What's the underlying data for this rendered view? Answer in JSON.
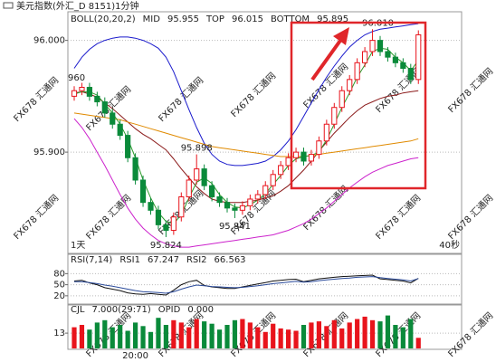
{
  "toolbar": {
    "title": "美元指数(外汇_D 8151)1分钟"
  },
  "watermark": "FX678 汇通网",
  "chart_data": [
    {
      "type": "candlestick",
      "indicator": "BOLL(20,20,2)",
      "ylim": [
        95.811,
        96.024
      ],
      "yticks": [
        {
          "value": 96.0,
          "label": "96.000"
        },
        {
          "value": 95.9,
          "label": "95.900"
        }
      ],
      "grid": true,
      "up_color": "#e8141c",
      "down_color": "#0a8a3a",
      "annotations": [
        "960"
      ],
      "corner_labels": [
        "1天",
        "40秒"
      ],
      "open": {
        "values": [
          95.95,
          95.955,
          95.958,
          95.95,
          95.945,
          95.935,
          95.925,
          95.915,
          95.895,
          95.875,
          95.855,
          95.848,
          95.835,
          95.83,
          95.842,
          95.86,
          95.875,
          95.885,
          95.87,
          95.86,
          95.855,
          95.85,
          95.848,
          95.852,
          95.858,
          95.862,
          95.87,
          95.88,
          95.888,
          95.895,
          95.9,
          95.892,
          95.898,
          95.91,
          95.925,
          95.94,
          95.955,
          95.965,
          95.98,
          95.99,
          96.0,
          95.99,
          95.985,
          95.98,
          95.975,
          95.965
        ]
      },
      "close": {
        "values": [
          95.955,
          95.958,
          95.95,
          95.945,
          95.935,
          95.925,
          95.915,
          95.895,
          95.875,
          95.855,
          95.848,
          95.835,
          95.83,
          95.842,
          95.86,
          95.875,
          95.885,
          95.87,
          95.86,
          95.855,
          95.85,
          95.848,
          95.852,
          95.858,
          95.862,
          95.87,
          95.88,
          95.888,
          95.895,
          95.9,
          95.892,
          95.898,
          95.91,
          95.925,
          95.94,
          95.955,
          95.965,
          95.98,
          95.99,
          96.0,
          95.99,
          95.985,
          95.98,
          95.975,
          95.965,
          96.005
        ]
      },
      "high": {
        "values": [
          95.959,
          95.962,
          95.962,
          95.954,
          95.949,
          95.939,
          95.929,
          95.919,
          95.899,
          95.879,
          95.859,
          95.852,
          95.839,
          95.846,
          95.864,
          95.879,
          95.898,
          95.889,
          95.874,
          95.864,
          95.859,
          95.854,
          95.856,
          95.862,
          95.866,
          95.874,
          95.884,
          95.892,
          95.899,
          95.904,
          95.904,
          95.902,
          95.914,
          95.929,
          95.944,
          95.959,
          95.969,
          95.984,
          95.994,
          96.01,
          96.004,
          95.994,
          95.989,
          95.984,
          95.979,
          96.009
        ],
        "value_labels": [
          null,
          null,
          null,
          null,
          null,
          null,
          null,
          null,
          null,
          null,
          null,
          null,
          null,
          null,
          null,
          null,
          "95.898",
          null,
          null,
          null,
          null,
          null,
          null,
          null,
          null,
          null,
          null,
          null,
          null,
          null,
          null,
          null,
          null,
          null,
          null,
          null,
          null,
          null,
          null,
          "96.010",
          null,
          null,
          null,
          null,
          null,
          null
        ]
      },
      "low": {
        "values": [
          95.946,
          95.951,
          95.946,
          95.941,
          95.931,
          95.921,
          95.911,
          95.891,
          95.871,
          95.851,
          95.844,
          95.831,
          95.824,
          95.826,
          95.838,
          95.856,
          95.871,
          95.866,
          95.856,
          95.851,
          95.846,
          95.841,
          95.844,
          95.848,
          95.854,
          95.858,
          95.866,
          95.876,
          95.884,
          95.891,
          95.888,
          95.888,
          95.894,
          95.906,
          95.921,
          95.936,
          95.951,
          95.961,
          95.976,
          95.986,
          95.986,
          95.981,
          95.976,
          95.971,
          95.961,
          95.961
        ],
        "value_labels": [
          null,
          null,
          null,
          null,
          null,
          null,
          null,
          null,
          null,
          null,
          null,
          null,
          "95.824",
          null,
          null,
          null,
          null,
          null,
          null,
          null,
          null,
          "95.841",
          null,
          null,
          null,
          null,
          null,
          null,
          null,
          null,
          null,
          null,
          null,
          null,
          null,
          null,
          null,
          null,
          null,
          null,
          null,
          null,
          null,
          null,
          null,
          null
        ]
      },
      "lines": [
        {
          "name": "MID",
          "color": "#8b1a1a",
          "legend_value": 95.955,
          "values": [
            95.953,
            95.954,
            95.952,
            95.949,
            95.944,
            95.939,
            95.933,
            95.927,
            95.921,
            95.916,
            95.912,
            95.907,
            95.902,
            95.894,
            95.885,
            95.877,
            95.869,
            95.863,
            95.858,
            95.856,
            95.855,
            95.855,
            95.855,
            95.856,
            95.857,
            95.859,
            95.861,
            95.865,
            95.87,
            95.877,
            95.884,
            95.892,
            95.901,
            95.909,
            95.917,
            95.924,
            95.931,
            95.937,
            95.942,
            95.945,
            95.948,
            95.95,
            95.951,
            95.953,
            95.954,
            95.955
          ]
        },
        {
          "name": "TOP",
          "color": "#1a1acc",
          "legend_value": 96.015,
          "values": [
            95.975,
            95.985,
            95.992,
            95.997,
            96.0,
            96.002,
            96.003,
            96.003,
            96.002,
            96.0,
            95.997,
            95.993,
            95.985,
            95.972,
            95.955,
            95.938,
            95.922,
            95.908,
            95.898,
            95.892,
            95.889,
            95.888,
            95.888,
            95.889,
            95.89,
            95.892,
            95.896,
            95.902,
            95.91,
            95.92,
            95.932,
            95.944,
            95.956,
            95.967,
            95.977,
            95.986,
            95.994,
            96.0,
            96.005,
            96.008,
            96.01,
            96.011,
            96.012,
            96.013,
            96.014,
            96.015
          ]
        },
        {
          "name": "BOTTOM",
          "color": "#cc22cc",
          "legend_value": 95.895,
          "values": [
            95.93,
            95.922,
            95.912,
            95.9,
            95.888,
            95.875,
            95.862,
            95.85,
            95.84,
            95.832,
            95.826,
            95.821,
            95.818,
            95.816,
            95.815,
            95.815,
            95.816,
            95.817,
            95.818,
            95.819,
            95.82,
            95.821,
            95.822,
            95.823,
            95.824,
            95.825,
            95.826,
            95.828,
            95.83,
            95.833,
            95.836,
            95.84,
            95.845,
            95.85,
            95.856,
            95.862,
            95.868,
            95.873,
            95.878,
            95.882,
            95.885,
            95.888,
            95.89,
            95.892,
            95.894,
            95.895
          ]
        },
        {
          "color": "#e08a00",
          "values": [
            95.935,
            95.934,
            95.933,
            95.932,
            95.931,
            95.93,
            95.929,
            95.927,
            95.925,
            95.923,
            95.921,
            95.919,
            95.917,
            95.915,
            95.913,
            95.911,
            95.909,
            95.907,
            95.905,
            95.904,
            95.903,
            95.902,
            95.901,
            95.9,
            95.899,
            95.898,
            95.897,
            95.896,
            95.896,
            95.896,
            95.896,
            95.897,
            95.898,
            95.899,
            95.9,
            95.901,
            95.902,
            95.903,
            95.904,
            95.905,
            95.906,
            95.907,
            95.908,
            95.909,
            95.91,
            95.912
          ]
        },
        {
          "color": "#2a9a2a",
          "values": [
            95.952,
            95.954,
            95.954,
            95.951,
            95.943,
            95.935,
            95.925,
            95.912,
            95.895,
            95.875,
            95.859,
            95.846,
            95.838,
            95.836,
            95.844,
            95.859,
            95.873,
            95.877,
            95.872,
            95.862,
            95.855,
            95.851,
            95.85,
            95.853,
            95.857,
            95.863,
            95.871,
            95.879,
            95.888,
            95.894,
            95.896,
            95.897,
            95.9,
            95.911,
            95.925,
            95.94,
            95.953,
            95.967,
            95.978,
            95.99,
            95.993,
            95.992,
            95.985,
            95.98,
            95.973,
            95.982
          ]
        }
      ]
    },
    {
      "type": "line",
      "indicator": "RSI(7,14)",
      "ylim": [
        0,
        125
      ],
      "yticks": [
        80,
        50,
        20
      ],
      "grid": true,
      "series": [
        {
          "name": "RSI1",
          "color": "#111111",
          "legend_value": 67.247,
          "values": [
            60,
            62,
            55,
            50,
            42,
            38,
            34,
            28,
            25,
            24,
            26,
            24,
            22,
            35,
            50,
            58,
            62,
            48,
            44,
            42,
            40,
            40,
            44,
            48,
            52,
            56,
            60,
            62,
            64,
            65,
            58,
            62,
            66,
            68,
            70,
            72,
            73,
            74,
            75,
            76,
            66,
            64,
            62,
            60,
            55,
            67.247
          ]
        },
        {
          "name": "RSI2",
          "color": "#2a4a9a",
          "legend_value": 66.563,
          "values": [
            58,
            58,
            56,
            53,
            49,
            46,
            42,
            38,
            34,
            31,
            30,
            29,
            27,
            31,
            38,
            44,
            49,
            47,
            45,
            44,
            43,
            42,
            43,
            45,
            47,
            50,
            53,
            55,
            57,
            59,
            57,
            58,
            61,
            63,
            65,
            67,
            68,
            70,
            71,
            72,
            69,
            67,
            65,
            63,
            60,
            66.563
          ]
        }
      ]
    },
    {
      "type": "bar",
      "title": "CJL",
      "params": "7.000(29:71)",
      "extra": {
        "name": "OPID",
        "value": "0.000"
      },
      "ylim": [
        0,
        30
      ],
      "yticks": [
        13
      ],
      "grid": true,
      "categories": [
        null,
        null,
        null,
        null,
        null,
        null,
        null,
        null,
        "20:00",
        null,
        null,
        null,
        null,
        null,
        null,
        null,
        null,
        null,
        null,
        null,
        null,
        null,
        null,
        null,
        null,
        null,
        null,
        null,
        null,
        null,
        null,
        null,
        null,
        null,
        null,
        null,
        null,
        null,
        null,
        null,
        null,
        null,
        null,
        null,
        null,
        null
      ],
      "values": [
        18,
        20,
        16,
        22,
        24,
        18,
        20,
        15,
        22,
        19,
        14,
        26,
        20,
        24,
        22,
        18,
        25,
        23,
        21,
        16,
        20,
        24,
        25,
        22,
        18,
        14,
        21,
        17,
        16,
        15,
        20,
        22,
        23,
        19,
        24,
        17,
        22,
        25,
        27,
        24,
        23,
        28,
        20,
        18,
        25,
        9
      ]
    }
  ]
}
